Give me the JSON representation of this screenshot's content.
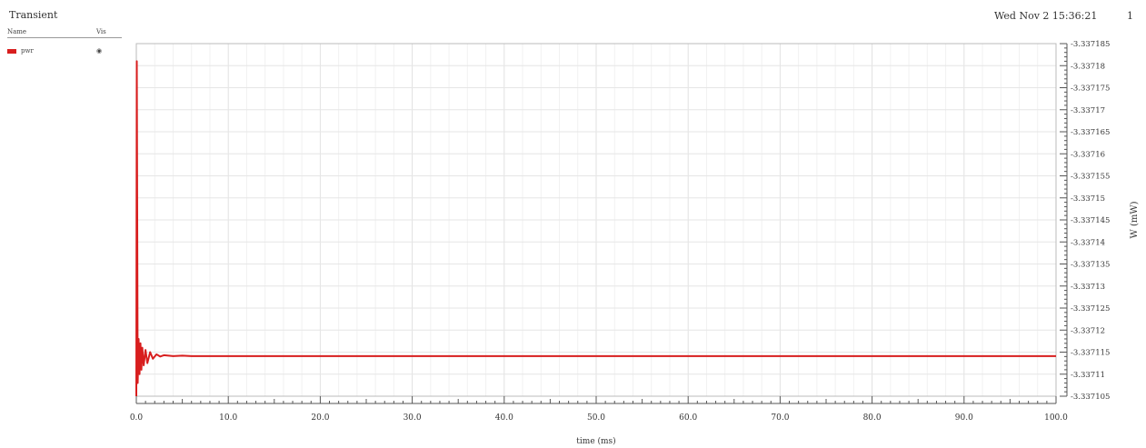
{
  "header": {
    "title": "Transient",
    "date": "Wed Nov 2 15:36:21",
    "page": "1"
  },
  "legend": {
    "col_name": "Name",
    "col_vis": "Vis",
    "items": [
      {
        "name": "pwr",
        "vis": "◉",
        "color": "#d81e1e"
      }
    ]
  },
  "chart_data": {
    "type": "line",
    "title": "",
    "xlabel": "time (ms)",
    "ylabel": "W (mW)",
    "xlim": [
      0,
      100
    ],
    "ylim": [
      3.337105,
      3.337185
    ],
    "x_ticks": [
      "0.0",
      "10.0",
      "20.0",
      "30.0",
      "40.0",
      "50.0",
      "60.0",
      "70.0",
      "80.0",
      "90.0",
      "100.0"
    ],
    "y_ticks": [
      "3.337105",
      "3.33711",
      "3.337115",
      "3.33712",
      "3.337125",
      "3.33713",
      "3.337135",
      "3.33714",
      "3.337145",
      "3.33715",
      "3.337155",
      "3.33716",
      "3.337165",
      "3.33717",
      "3.337175",
      "3.33718",
      "3.337185"
    ],
    "grid": true,
    "series": [
      {
        "name": "pwr",
        "color": "#d81e1e",
        "x": [
          0,
          0.05,
          0.15,
          0.25,
          0.35,
          0.45,
          0.55,
          0.65,
          0.8,
          1.0,
          1.2,
          1.5,
          1.8,
          2.2,
          2.6,
          3.0,
          4.0,
          5.0,
          6.0,
          10,
          20,
          30,
          40,
          50,
          60,
          70,
          80,
          90,
          100
        ],
        "y": [
          3.337105,
          3.337181,
          3.337108,
          3.337118,
          3.33711,
          3.337117,
          3.337111,
          3.337116,
          3.337112,
          3.3371155,
          3.3371125,
          3.337115,
          3.3371135,
          3.3371145,
          3.337114,
          3.3371143,
          3.3371141,
          3.3371142,
          3.3371141,
          3.3371141,
          3.3371141,
          3.3371141,
          3.3371141,
          3.3371141,
          3.3371141,
          3.3371141,
          3.3371141,
          3.3371141,
          3.3371141
        ]
      }
    ]
  }
}
